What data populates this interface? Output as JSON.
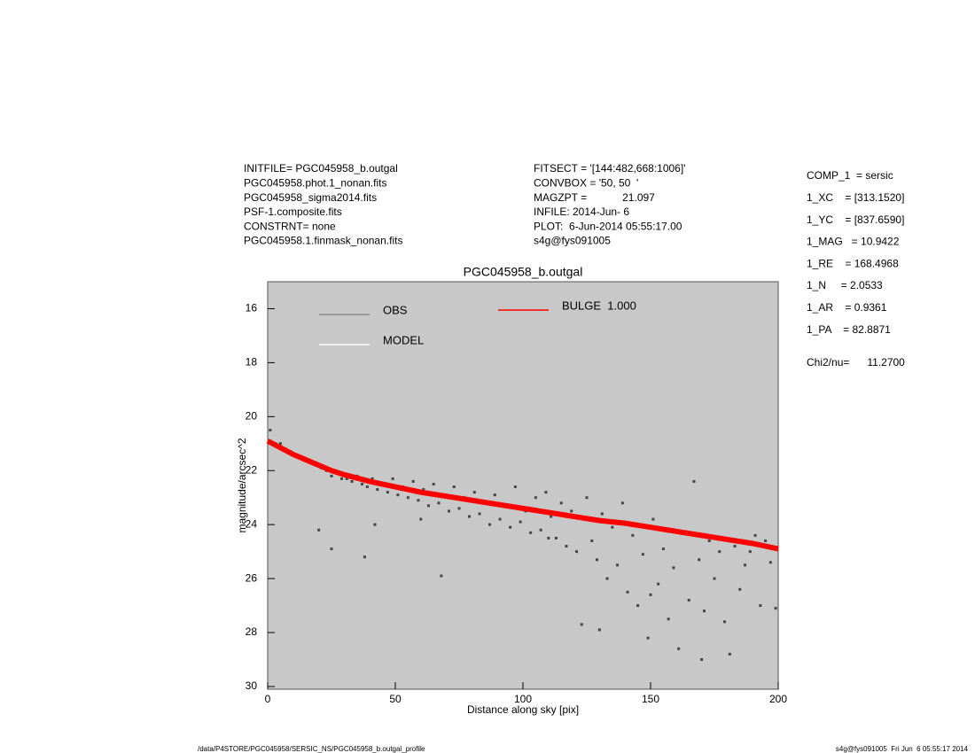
{
  "header": {
    "left": [
      "INITFILE= PGC045958_b.outgal",
      "PGC045958.phot.1_nonan.fits",
      "PGC045958_sigma2014.fits",
      "PSF-1.composite.fits",
      "CONSTRNT= none",
      "PGC045958.1.finmask_nonan.fits"
    ],
    "middle": [
      "FITSECT = '[144:482,668:1006]'",
      "CONVBOX = '50, 50  '",
      "MAGZPT =            21.097",
      "INFILE: 2014-Jun- 6",
      "PLOT:  6-Jun-2014 05:55:17.00",
      "s4g@fys091005"
    ],
    "right": [
      "COMP_1  = sersic",
      "1_XC    = [313.1520]",
      "1_YC    = [837.6590]",
      "1_MAG   = 10.9422",
      "1_RE    = 168.4968",
      "1_N     = 2.0533",
      "1_AR    = 0.9361",
      "1_PA    = 82.8871",
      "Chi2/nu=      11.2700"
    ]
  },
  "footer": {
    "left": "/data/P4STORE/PGC045958/SERSIC_NS/PGC045958_b.outgal_profile",
    "right": "s4g@fys091005  Fri Jun  6 05:55:17 2014"
  },
  "chart_data": {
    "type": "scatter",
    "title": "PGC045958_b.outgal",
    "xlabel": "Distance along sky [pix]",
    "ylabel": "magnitude/arcsec^2",
    "xlim": [
      0,
      200
    ],
    "ylim": [
      30.1,
      15
    ],
    "xticks": [
      0,
      50,
      100,
      150,
      200
    ],
    "yticks": [
      16,
      18,
      20,
      22,
      24,
      26,
      28,
      30
    ],
    "series": [
      {
        "name": "OBS",
        "color": "#444444",
        "x": [
          1,
          3,
          5,
          7,
          9,
          11,
          13,
          15,
          17,
          19,
          21,
          23,
          25,
          27,
          29,
          31,
          33,
          35,
          37,
          39,
          41,
          43,
          45,
          47,
          49,
          51,
          53,
          55,
          57,
          59,
          61,
          63,
          65,
          67,
          69,
          71,
          73,
          75,
          77,
          79,
          81,
          83,
          85,
          87,
          89,
          91,
          93,
          95,
          97,
          99,
          101,
          103,
          105,
          107,
          109,
          111,
          113,
          115,
          117,
          119,
          121,
          123,
          125,
          127,
          129,
          131,
          133,
          135,
          137,
          139,
          141,
          143,
          145,
          147,
          149,
          151,
          153,
          155,
          157,
          159,
          161,
          163,
          165,
          167,
          169,
          171,
          173,
          175,
          177,
          179,
          181,
          183,
          185,
          187,
          189,
          191,
          193,
          195,
          197,
          199,
          20,
          25,
          38,
          68,
          42,
          60,
          110,
          130,
          150,
          170
        ],
        "values": [
          20.5,
          21.0,
          21.0,
          21.2,
          21.3,
          21.4,
          21.5,
          21.6,
          21.7,
          21.8,
          21.9,
          22.0,
          22.2,
          22.1,
          22.3,
          22.3,
          22.4,
          22.2,
          22.5,
          22.6,
          22.3,
          22.7,
          22.5,
          22.8,
          22.3,
          22.9,
          22.6,
          23.0,
          22.4,
          23.1,
          22.7,
          23.3,
          22.5,
          23.2,
          22.9,
          23.5,
          22.6,
          23.4,
          23.0,
          23.7,
          22.8,
          23.6,
          23.2,
          24.0,
          22.9,
          23.8,
          23.3,
          24.1,
          22.6,
          23.9,
          23.5,
          24.3,
          23.0,
          24.2,
          22.8,
          23.7,
          24.5,
          23.2,
          24.8,
          23.5,
          25.0,
          27.7,
          23.0,
          24.6,
          25.3,
          23.6,
          26.0,
          24.1,
          25.5,
          23.2,
          26.5,
          24.4,
          27.0,
          25.1,
          28.2,
          23.8,
          26.2,
          24.9,
          27.5,
          25.6,
          28.6,
          24.3,
          26.8,
          22.4,
          25.3,
          27.2,
          24.6,
          26.0,
          25.0,
          27.6,
          28.8,
          24.8,
          26.4,
          25.5,
          25.0,
          24.4,
          27.0,
          24.6,
          25.4,
          27.1,
          24.2,
          24.9,
          25.2,
          25.9,
          24.0,
          23.8,
          24.5,
          27.9,
          26.6,
          29.0
        ]
      },
      {
        "name": "MODEL",
        "color": "#ffffff",
        "x": [
          0,
          5,
          10,
          15,
          20,
          25,
          30,
          40,
          50,
          60,
          70,
          80,
          90,
          100,
          110,
          120,
          130,
          140,
          150,
          160,
          170,
          180,
          190,
          200
        ],
        "values": [
          20.9,
          21.15,
          21.4,
          21.6,
          21.8,
          22.0,
          22.15,
          22.4,
          22.6,
          22.8,
          22.95,
          23.1,
          23.25,
          23.4,
          23.55,
          23.7,
          23.85,
          23.95,
          24.1,
          24.25,
          24.4,
          24.55,
          24.7,
          24.9
        ]
      },
      {
        "name": "BULGE  1.000",
        "color": "#ff0000",
        "x": [
          0,
          5,
          10,
          15,
          20,
          25,
          30,
          40,
          50,
          60,
          70,
          80,
          90,
          100,
          110,
          120,
          130,
          140,
          150,
          160,
          170,
          180,
          190,
          200
        ],
        "values": [
          20.9,
          21.15,
          21.4,
          21.6,
          21.8,
          22.0,
          22.15,
          22.4,
          22.6,
          22.8,
          22.95,
          23.1,
          23.25,
          23.4,
          23.55,
          23.7,
          23.85,
          23.95,
          24.1,
          24.25,
          24.4,
          24.55,
          24.7,
          24.9
        ]
      }
    ]
  }
}
